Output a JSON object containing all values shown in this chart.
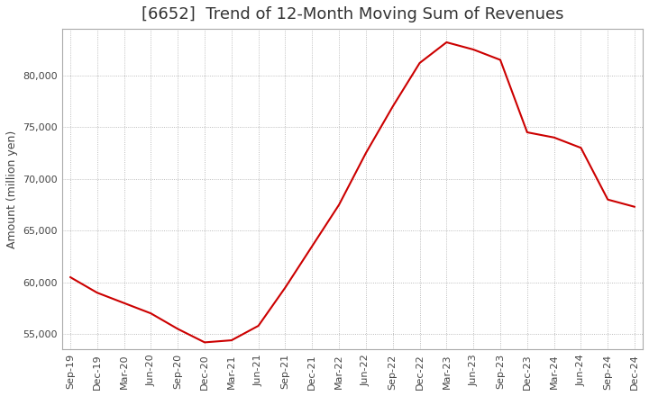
{
  "title": "[6652]  Trend of 12-Month Moving Sum of Revenues",
  "ylabel": "Amount (million yen)",
  "line_color": "#cc0000",
  "background_color": "#ffffff",
  "grid_color": "#aaaaaa",
  "x_labels": [
    "Sep-19",
    "Dec-19",
    "Mar-20",
    "Jun-20",
    "Sep-20",
    "Dec-20",
    "Mar-21",
    "Jun-21",
    "Sep-21",
    "Dec-21",
    "Mar-22",
    "Jun-22",
    "Sep-22",
    "Dec-22",
    "Mar-23",
    "Jun-23",
    "Sep-23",
    "Dec-23",
    "Mar-24",
    "Jun-24",
    "Sep-24",
    "Dec-24"
  ],
  "values": [
    60500,
    59000,
    58000,
    57000,
    55500,
    54200,
    54400,
    55800,
    59500,
    63500,
    67500,
    72500,
    77000,
    81200,
    83200,
    82500,
    81500,
    74500,
    74000,
    73000,
    68000,
    67300
  ],
  "ylim": [
    53500,
    84500
  ],
  "yticks": [
    55000,
    60000,
    65000,
    70000,
    75000,
    80000
  ],
  "title_fontsize": 13,
  "label_fontsize": 9,
  "tick_fontsize": 8
}
